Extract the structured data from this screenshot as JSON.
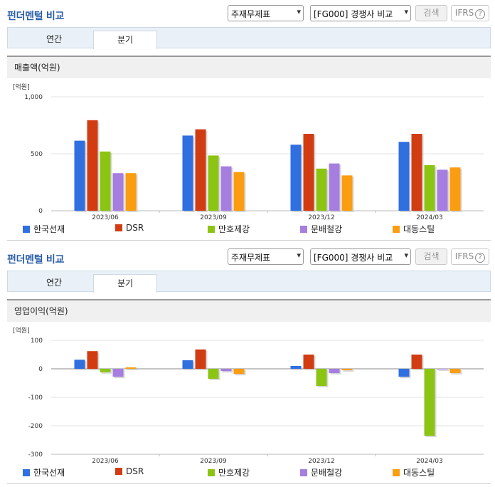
{
  "panels": [
    {
      "title": "펀더멘털 비교",
      "select1": "주재무제표",
      "select2": "[FG000] 경쟁사 비교",
      "search_label": "검색",
      "ifrs_label": "IFRS",
      "help_glyph": "?",
      "tabs": [
        "연간",
        "분기"
      ],
      "active_tab": "분기",
      "section_label": "매출액(억원)"
    },
    {
      "title": "펀더멘털 비교",
      "select1": "주재무제표",
      "select2": "[FG000] 경쟁사 비교",
      "search_label": "검색",
      "ifrs_label": "IFRS",
      "help_glyph": "?",
      "tabs": [
        "연간",
        "분기"
      ],
      "active_tab": "분기",
      "section_label": "영업이익(억원)"
    }
  ],
  "chart_data": [
    {
      "type": "bar",
      "unit_label": "[억원]",
      "ylim": [
        0,
        1000
      ],
      "yticks": [
        "1,000",
        "500",
        "0"
      ],
      "ytick_values": [
        1000,
        500,
        0
      ],
      "categories": [
        "2023/06",
        "2023/09",
        "2023/12",
        "2024/03"
      ],
      "series": [
        {
          "name": "한국선재",
          "color": "#2f6fe0",
          "values": [
            615,
            660,
            580,
            605
          ]
        },
        {
          "name": "DSR",
          "color": "#d13c12",
          "values": [
            795,
            715,
            675,
            675
          ]
        },
        {
          "name": "만호제강",
          "color": "#8cc414",
          "values": [
            520,
            485,
            370,
            400
          ]
        },
        {
          "name": "문배철강",
          "color": "#a57ee0",
          "values": [
            330,
            390,
            415,
            360
          ]
        },
        {
          "name": "대동스틸",
          "color": "#fa9d10",
          "values": [
            330,
            340,
            310,
            380
          ]
        }
      ],
      "grid": true,
      "legend": "bottom"
    },
    {
      "type": "bar",
      "unit_label": "[억원]",
      "ylim": [
        -300,
        100
      ],
      "yticks": [
        "100",
        "0",
        "-100",
        "-200",
        "-300"
      ],
      "ytick_values": [
        100,
        0,
        -100,
        -200,
        -300
      ],
      "categories": [
        "2023/06",
        "2023/09",
        "2023/12",
        "2024/03"
      ],
      "series": [
        {
          "name": "한국선재",
          "color": "#2f6fe0",
          "values": [
            32,
            30,
            10,
            -28
          ]
        },
        {
          "name": "DSR",
          "color": "#d13c12",
          "values": [
            62,
            68,
            50,
            50
          ]
        },
        {
          "name": "만호제강",
          "color": "#8cc414",
          "values": [
            -12,
            -35,
            -60,
            -235
          ]
        },
        {
          "name": "문배철강",
          "color": "#a57ee0",
          "values": [
            -28,
            -8,
            -15,
            0
          ]
        },
        {
          "name": "대동스틸",
          "color": "#fa9d10",
          "values": [
            5,
            -18,
            -5,
            -15
          ]
        }
      ],
      "grid": true,
      "legend": "bottom"
    }
  ]
}
